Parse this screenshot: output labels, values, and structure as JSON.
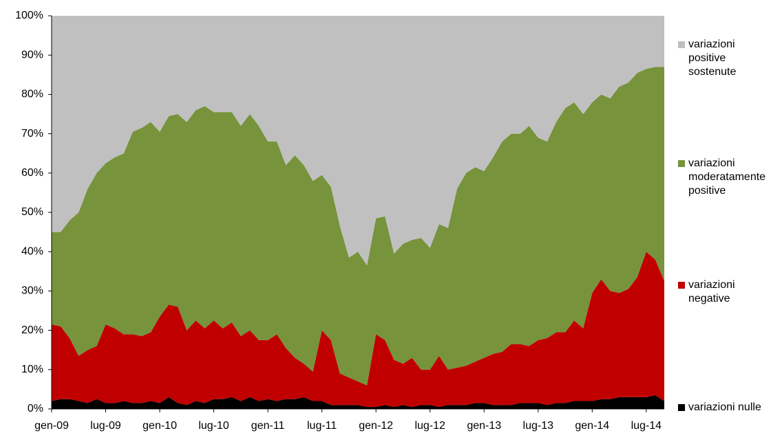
{
  "chart_data": {
    "type": "stacked-area",
    "categories": [
      "gen-09",
      null,
      null,
      null,
      null,
      null,
      "lug-09",
      null,
      null,
      null,
      null,
      null,
      "gen-10",
      null,
      null,
      null,
      null,
      null,
      "lug-10",
      null,
      null,
      null,
      null,
      null,
      "gen-11",
      null,
      null,
      null,
      null,
      null,
      "lug-11",
      null,
      null,
      null,
      null,
      null,
      "gen-12",
      null,
      null,
      null,
      null,
      null,
      "lug-12",
      null,
      null,
      null,
      null,
      null,
      "gen-13",
      null,
      null,
      null,
      null,
      null,
      "lug-13",
      null,
      null,
      null,
      null,
      null,
      "gen-14",
      null,
      null,
      null,
      null,
      null,
      "lug-14",
      null,
      null
    ],
    "series": [
      {
        "name": "variazioni nulle",
        "color": "#000000",
        "values": [
          2,
          2.5,
          2.5,
          2,
          1.5,
          2.5,
          1.5,
          1.5,
          2,
          1.5,
          1.5,
          2,
          1.5,
          3,
          1.5,
          1,
          2,
          1.5,
          2.5,
          2.5,
          3,
          2,
          3,
          2,
          2.5,
          2,
          2.5,
          2.5,
          3,
          2,
          2,
          1,
          1,
          1,
          1,
          0.5,
          0.5,
          1,
          0.5,
          1,
          0.5,
          1,
          1,
          0.5,
          1,
          1,
          1,
          1.5,
          1.5,
          1,
          1,
          1,
          1.5,
          1.5,
          1.5,
          1,
          1.5,
          1.5,
          2,
          2,
          2,
          2.5,
          2.5,
          3,
          3,
          3,
          3,
          3.5,
          2
        ]
      },
      {
        "name": "variazioni negative",
        "color": "#c00000",
        "values": [
          19.5,
          18.5,
          15.5,
          11.5,
          13.5,
          13.5,
          20,
          19,
          17,
          17.5,
          17,
          17.5,
          22,
          23.5,
          24.5,
          19,
          20.5,
          19,
          20,
          18,
          19,
          16.5,
          17,
          15.5,
          15,
          17,
          13,
          10.5,
          8.5,
          7.5,
          18,
          16.5,
          8,
          7,
          6,
          5.5,
          18.5,
          16.5,
          12,
          10.5,
          12.5,
          9,
          9,
          13,
          9,
          9.5,
          10,
          10.5,
          11.5,
          13,
          13.5,
          15.5,
          15,
          14.5,
          16,
          17,
          18,
          18,
          20.5,
          18.5,
          27.5,
          30.5,
          27.5,
          26.5,
          27.5,
          30.5,
          37,
          34.5,
          30.5
        ]
      },
      {
        "name": "variazioni moderatamente positive",
        "color": "#77933c",
        "values": [
          23.5,
          24,
          30,
          36.5,
          41,
          44,
          41,
          43.5,
          46,
          51.5,
          53,
          53.5,
          47,
          48,
          49,
          53,
          53.5,
          56.5,
          53,
          55,
          53.5,
          53.5,
          55,
          54.5,
          50.5,
          49,
          46.5,
          51.5,
          50.5,
          48.5,
          39.5,
          39,
          37.5,
          30.5,
          33,
          30.5,
          29.5,
          31.5,
          27,
          30.5,
          30,
          33.5,
          31,
          33.5,
          36,
          45.5,
          49,
          49.5,
          47.5,
          50,
          53.5,
          53.5,
          53.5,
          56,
          51.5,
          50,
          53.5,
          57,
          55.5,
          54.5,
          48.5,
          47,
          49,
          52.5,
          52.5,
          52,
          46.5,
          49,
          54.5
        ]
      },
      {
        "name": "variazioni positive sostenute",
        "color": "#c0c0c0",
        "values": [
          55,
          55,
          52,
          50,
          44,
          40,
          37.5,
          36,
          35,
          29.5,
          28.5,
          27,
          29.5,
          25.5,
          25,
          27,
          24,
          23,
          24.5,
          24.5,
          24.5,
          28,
          25,
          28,
          32,
          32,
          38,
          35.5,
          38,
          42,
          40.5,
          43.5,
          53.5,
          61.5,
          60,
          63.5,
          51.5,
          51,
          60.5,
          58,
          57,
          56.5,
          59,
          53,
          54,
          44,
          40,
          38.5,
          39.5,
          36,
          32,
          30,
          30,
          28,
          31,
          32,
          27,
          23.5,
          22,
          25,
          22,
          20,
          21,
          18,
          17,
          14.5,
          13.5,
          13,
          13
        ]
      }
    ],
    "ylim": [
      0,
      100
    ],
    "yticks": [
      {
        "value": 0,
        "label": "0%"
      },
      {
        "value": 10,
        "label": "10%"
      },
      {
        "value": 20,
        "label": "20%"
      },
      {
        "value": 30,
        "label": "30%"
      },
      {
        "value": 40,
        "label": "40%"
      },
      {
        "value": 50,
        "label": "50%"
      },
      {
        "value": 60,
        "label": "60%"
      },
      {
        "value": 70,
        "label": "70%"
      },
      {
        "value": 80,
        "label": "80%"
      },
      {
        "value": 90,
        "label": "90%"
      },
      {
        "value": 100,
        "label": "100%"
      }
    ],
    "grid": false
  }
}
